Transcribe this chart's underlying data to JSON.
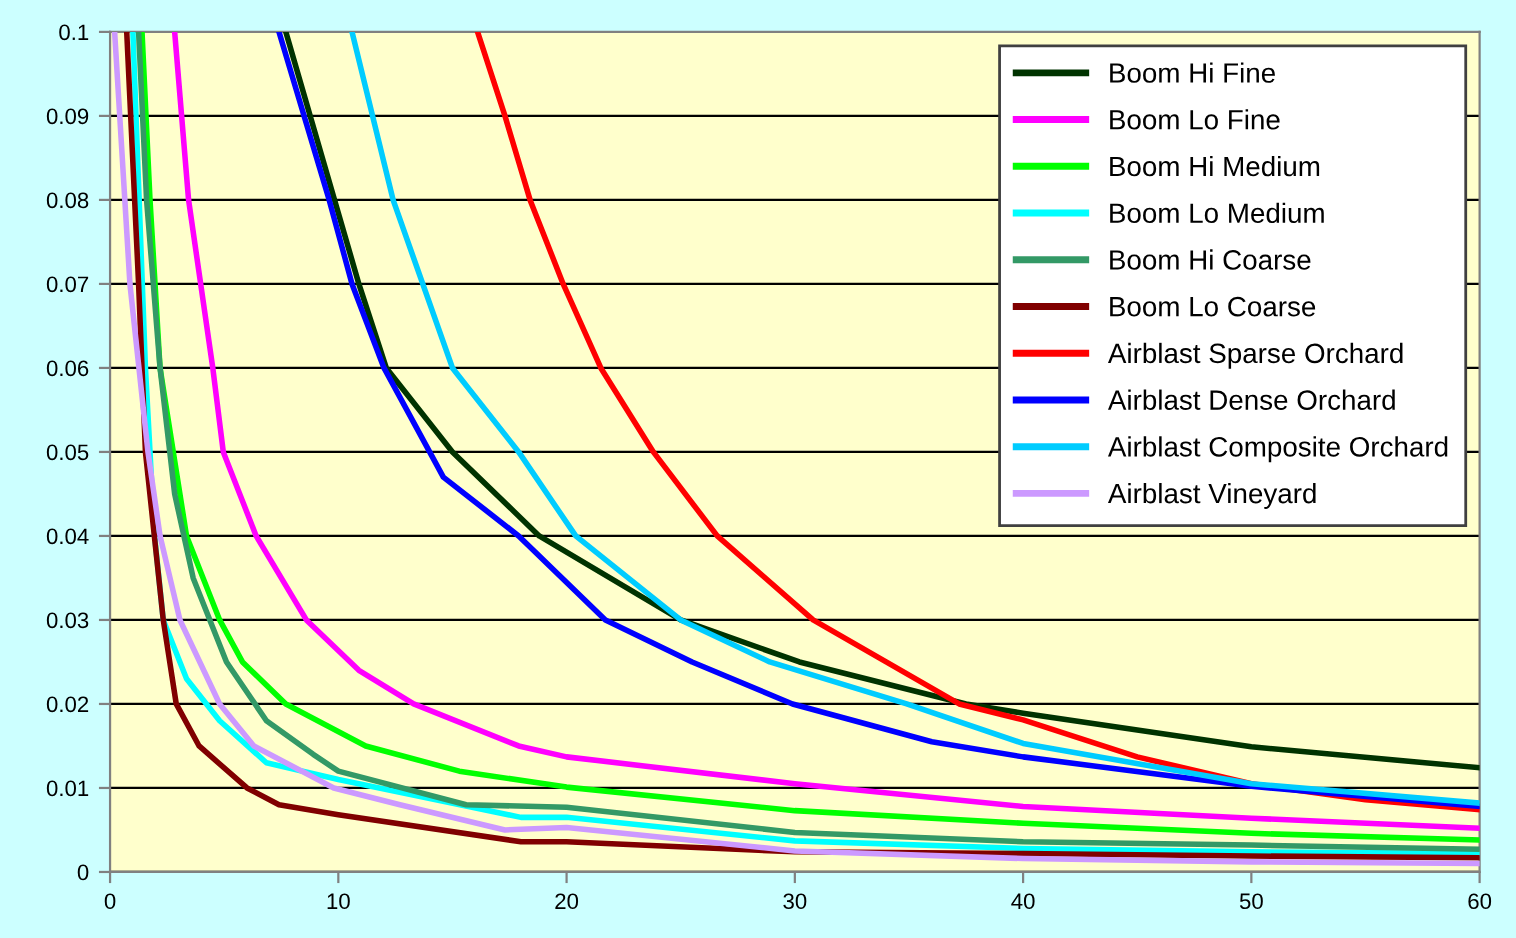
{
  "chart_data": {
    "type": "line",
    "xlim": [
      0,
      60
    ],
    "ylim": [
      0,
      0.1
    ],
    "xticks": [
      0,
      10,
      20,
      30,
      40,
      50,
      60
    ],
    "yticks": [
      0,
      0.01,
      0.02,
      0.03,
      0.04,
      0.05,
      0.06,
      0.07,
      0.08,
      0.09,
      0.1
    ],
    "grid": "y",
    "legend": "top right",
    "marker": "none",
    "line_style": "solid",
    "series": [
      {
        "name": "Boom Hi Fine",
        "color": "#003300",
        "x": [
          7.7,
          10.9,
          12.1,
          15.0,
          18.8,
          25.0,
          30.2,
          37.5,
          40,
          50,
          60
        ],
        "values": [
          0.1,
          0.07,
          0.06,
          0.05,
          0.04,
          0.03,
          0.025,
          0.02,
          0.0189,
          0.0149,
          0.0124
        ]
      },
      {
        "name": "Boom Lo Fine",
        "color": "#ff00ff",
        "x": [
          2.83,
          3.44,
          4.5,
          4.96,
          6.4,
          8.6,
          10.9,
          13.3,
          17.9,
          20,
          30,
          40,
          50,
          60
        ],
        "values": [
          0.1,
          0.08,
          0.06,
          0.05,
          0.04,
          0.03,
          0.024,
          0.02,
          0.015,
          0.0137,
          0.0105,
          0.0078,
          0.0064,
          0.0052
        ]
      },
      {
        "name": "Boom Hi Medium",
        "color": "#00ff00",
        "x": [
          1.4,
          1.75,
          2.19,
          3.35,
          4.8,
          5.8,
          7.7,
          11.2,
          15.3,
          20,
          30,
          40,
          50,
          60
        ],
        "values": [
          0.1,
          0.08,
          0.06,
          0.04,
          0.03,
          0.025,
          0.02,
          0.015,
          0.012,
          0.0101,
          0.0073,
          0.0058,
          0.0046,
          0.0038
        ]
      },
      {
        "name": "Boom Lo Medium",
        "color": "#00ffff",
        "x": [
          1.0,
          1.55,
          1.95,
          2.33,
          3.35,
          4.8,
          6.85,
          10,
          18,
          20,
          30,
          40,
          50,
          60
        ],
        "values": [
          0.1,
          0.06,
          0.04,
          0.03,
          0.023,
          0.018,
          0.013,
          0.011,
          0.0065,
          0.0065,
          0.0037,
          0.0028,
          0.0024,
          0.0022
        ]
      },
      {
        "name": "Boom Hi Coarse",
        "color": "#339966",
        "x": [
          1.25,
          1.6,
          2.19,
          2.83,
          3.64,
          5.1,
          6.85,
          8.9,
          10,
          15.6,
          20,
          30,
          40,
          50,
          60
        ],
        "values": [
          0.1,
          0.08,
          0.06,
          0.045,
          0.035,
          0.025,
          0.018,
          0.014,
          0.012,
          0.008,
          0.0077,
          0.0047,
          0.0036,
          0.0032,
          0.0027
        ]
      },
      {
        "name": "Boom Lo Coarse",
        "color": "#800000",
        "x": [
          0.73,
          1.25,
          1.55,
          2.33,
          2.9,
          3.9,
          6.0,
          7.4,
          10,
          18,
          20,
          30,
          40,
          50,
          60
        ],
        "values": [
          0.1,
          0.07,
          0.05,
          0.03,
          0.02,
          0.015,
          0.01,
          0.008,
          0.0068,
          0.0036,
          0.0036,
          0.0024,
          0.0022,
          0.0019,
          0.0017
        ]
      },
      {
        "name": "Airblast Sparse Orchard",
        "color": "#ff0000",
        "x": [
          16.1,
          17.3,
          18.4,
          19.85,
          21.5,
          23.8,
          26.6,
          30.8,
          34.0,
          37.2,
          40,
          45,
          50,
          55,
          60
        ],
        "values": [
          0.1,
          0.09,
          0.08,
          0.07,
          0.06,
          0.05,
          0.04,
          0.03,
          0.025,
          0.02,
          0.0181,
          0.0137,
          0.0105,
          0.0086,
          0.0074
        ]
      },
      {
        "name": "Airblast Dense Orchard",
        "color": "#0000ff",
        "x": [
          7.4,
          9.6,
          10.6,
          12.0,
          14.0,
          14.6,
          17.9,
          21.7,
          25.5,
          29.9,
          36.0,
          40,
          50,
          60
        ],
        "values": [
          0.1,
          0.08,
          0.07,
          0.06,
          0.05,
          0.047,
          0.04,
          0.03,
          0.025,
          0.02,
          0.0155,
          0.0137,
          0.0102,
          0.0078
        ]
      },
      {
        "name": "Airblast Composite Orchard",
        "color": "#00ccff",
        "x": [
          10.6,
          12.4,
          15.0,
          17.9,
          20.4,
          25.0,
          28.9,
          34.9,
          40,
          50,
          60
        ],
        "values": [
          0.1,
          0.08,
          0.06,
          0.05,
          0.04,
          0.03,
          0.025,
          0.02,
          0.0153,
          0.0105,
          0.0082
        ]
      },
      {
        "name": "Airblast Vineyard",
        "color": "#cc99ff",
        "x": [
          0.2,
          0.87,
          1.66,
          2.19,
          3.06,
          4.8,
          6.3,
          9.8,
          12.7,
          17.3,
          20,
          30,
          40,
          50,
          60
        ],
        "values": [
          0.1,
          0.07,
          0.05,
          0.04,
          0.03,
          0.02,
          0.015,
          0.01,
          0.008,
          0.005,
          0.0053,
          0.0025,
          0.0016,
          0.0012,
          0.001
        ]
      }
    ]
  }
}
